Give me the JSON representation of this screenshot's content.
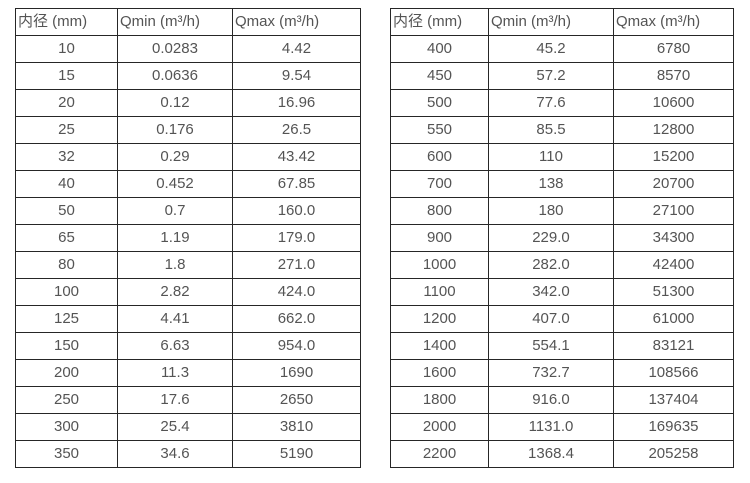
{
  "colors": {
    "background": "#ffffff",
    "border": "#262626",
    "text": "#545454"
  },
  "tables": [
    {
      "name": "flow-spec-table-small-diameters",
      "headers": [
        "内径 (mm)",
        "Qmin (m³/h)",
        "Qmax (m³/h)"
      ],
      "rows": [
        [
          "10",
          "0.0283",
          "4.42"
        ],
        [
          "15",
          "0.0636",
          "9.54"
        ],
        [
          "20",
          "0.12",
          "16.96"
        ],
        [
          "25",
          "0.176",
          "26.5"
        ],
        [
          "32",
          "0.29",
          "43.42"
        ],
        [
          "40",
          "0.452",
          "67.85"
        ],
        [
          "50",
          "0.7",
          "160.0"
        ],
        [
          "65",
          "1.19",
          "179.0"
        ],
        [
          "80",
          "1.8",
          "271.0"
        ],
        [
          "100",
          "2.82",
          "424.0"
        ],
        [
          "125",
          "4.41",
          "662.0"
        ],
        [
          "150",
          "6.63",
          "954.0"
        ],
        [
          "200",
          "11.3",
          "1690"
        ],
        [
          "250",
          "17.6",
          "2650"
        ],
        [
          "300",
          "25.4",
          "3810"
        ],
        [
          "350",
          "34.6",
          "5190"
        ]
      ]
    },
    {
      "name": "flow-spec-table-large-diameters",
      "headers": [
        "内径 (mm)",
        "Qmin (m³/h)",
        "Qmax (m³/h)"
      ],
      "rows": [
        [
          "400",
          "45.2",
          "6780"
        ],
        [
          "450",
          "57.2",
          "8570"
        ],
        [
          "500",
          "77.6",
          "10600"
        ],
        [
          "550",
          "85.5",
          "12800"
        ],
        [
          "600",
          "110",
          "15200"
        ],
        [
          "700",
          "138",
          "20700"
        ],
        [
          "800",
          "180",
          "27100"
        ],
        [
          "900",
          "229.0",
          "34300"
        ],
        [
          "1000",
          "282.0",
          "42400"
        ],
        [
          "1100",
          "342.0",
          "51300"
        ],
        [
          "1200",
          "407.0",
          "61000"
        ],
        [
          "1400",
          "554.1",
          "83121"
        ],
        [
          "1600",
          "732.7",
          "108566"
        ],
        [
          "1800",
          "916.0",
          "137404"
        ],
        [
          "2000",
          "1131.0",
          "169635"
        ],
        [
          "2200",
          "1368.4",
          "205258"
        ]
      ]
    }
  ]
}
